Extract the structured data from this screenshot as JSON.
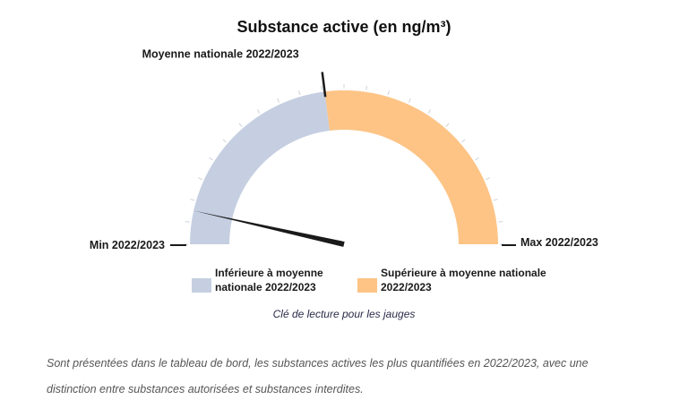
{
  "title": "Substance active (en ng/m³)",
  "chart_data": {
    "type": "gauge",
    "labels": {
      "average": "Moyenne nationale 2022/2023",
      "min": "Min 2022/2023",
      "max": "Max 2022/2023"
    },
    "average_fraction": 0.46,
    "needle_fraction": 0.07,
    "segments": [
      {
        "name": "Inférieure à moyenne nationale 2022/2023",
        "color": "#c5cfe1"
      },
      {
        "name": "Supérieure à moyenne nationale 2022/2023",
        "color": "#fdc486"
      }
    ]
  },
  "legend": {
    "below_line1": "Inférieure à moyenne",
    "below_line2": "nationale 2022/2023",
    "above_line1": "Supérieure à moyenne nationale",
    "above_line2": "2022/2023"
  },
  "caption": "Clé de lecture pour les jauges",
  "note_line1": "Sont présentées dans le tableau de bord, les substances actives les plus quantifiées en 2022/2023, avec une",
  "note_line2": "distinction entre substances autorisées et substances interdites."
}
